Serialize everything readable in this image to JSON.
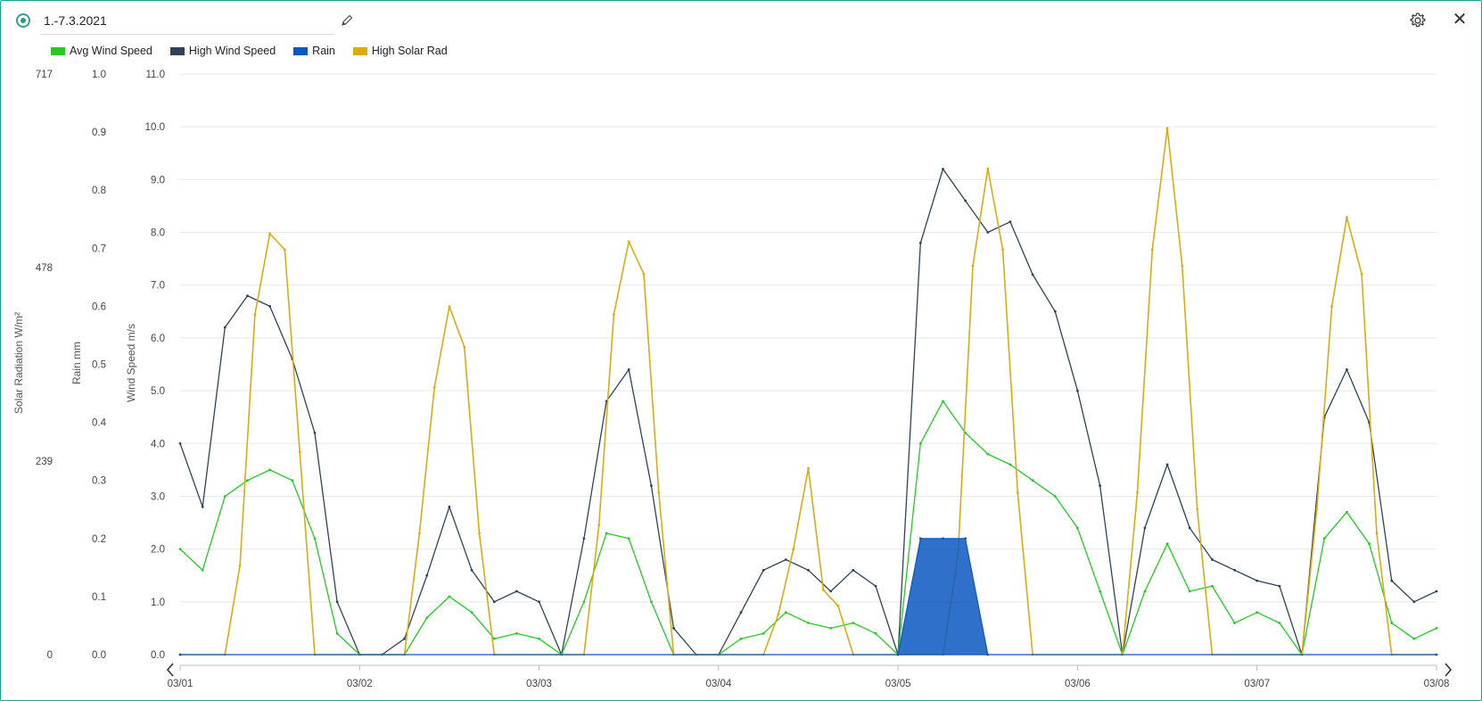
{
  "header": {
    "title": "1.-7.3.2021"
  },
  "icons": {
    "status": "radio-selected-icon",
    "edit": "pencil-icon",
    "settings": "gear-icon",
    "close": "close-icon"
  },
  "colors": {
    "avg_wind": "#22cc22",
    "high_wind": "#2e4358",
    "rain": "#0a57c2",
    "solar": "#d9ac14",
    "accent": "#17a589"
  },
  "chart_data": {
    "type": "line",
    "legend_placement": "top-left",
    "grid": true,
    "legend": [
      "Avg Wind Speed",
      "High Wind Speed",
      "Rain",
      "High Solar Rad"
    ],
    "x_ticks": [
      "03/01",
      "03/02",
      "03/03",
      "03/04",
      "03/05",
      "03/06",
      "03/07",
      "03/08"
    ],
    "x_range": [
      "2021-03-01",
      "2021-03-08"
    ],
    "axes": {
      "wind": {
        "label": "Wind Speed m/s",
        "range": [
          0,
          11
        ],
        "ticks": [
          "0.0",
          "1.0",
          "2.0",
          "3.0",
          "4.0",
          "5.0",
          "6.0",
          "7.0",
          "8.0",
          "9.0",
          "10.0",
          "11.0"
        ]
      },
      "rain": {
        "label": "Rain mm",
        "range": [
          0,
          1
        ],
        "ticks": [
          "0.0",
          "0.1",
          "0.2",
          "0.3",
          "0.4",
          "0.5",
          "0.6",
          "0.7",
          "0.8",
          "0.9",
          "1.0"
        ]
      },
      "solar": {
        "label": "Solar Radiation W/m²",
        "range": [
          0,
          717
        ],
        "ticks": [
          "0",
          "239",
          "478",
          "717"
        ]
      }
    },
    "series": [
      {
        "name": "Avg Wind Speed",
        "axis": "wind",
        "x": [
          "03/01 00:00",
          "03/01 03:00",
          "03/01 06:00",
          "03/01 09:00",
          "03/01 12:00",
          "03/01 15:00",
          "03/01 18:00",
          "03/01 21:00",
          "03/02 00:00",
          "03/02 03:00",
          "03/02 06:00",
          "03/02 09:00",
          "03/02 12:00",
          "03/02 15:00",
          "03/02 18:00",
          "03/02 21:00",
          "03/03 00:00",
          "03/03 03:00",
          "03/03 06:00",
          "03/03 09:00",
          "03/03 12:00",
          "03/03 15:00",
          "03/03 18:00",
          "03/03 21:00",
          "03/04 00:00",
          "03/04 03:00",
          "03/04 06:00",
          "03/04 09:00",
          "03/04 12:00",
          "03/04 15:00",
          "03/04 18:00",
          "03/04 21:00",
          "03/05 00:00",
          "03/05 03:00",
          "03/05 06:00",
          "03/05 09:00",
          "03/05 12:00",
          "03/05 15:00",
          "03/05 18:00",
          "03/05 21:00",
          "03/06 00:00",
          "03/06 03:00",
          "03/06 06:00",
          "03/06 09:00",
          "03/06 12:00",
          "03/06 15:00",
          "03/06 18:00",
          "03/06 21:00",
          "03/07 00:00",
          "03/07 03:00",
          "03/07 06:00",
          "03/07 09:00",
          "03/07 12:00",
          "03/07 15:00",
          "03/07 18:00",
          "03/07 21:00",
          "03/08 00:00"
        ],
        "values": [
          2.0,
          1.6,
          3.0,
          3.3,
          3.5,
          3.3,
          2.2,
          0.4,
          0.0,
          0.0,
          0.0,
          0.7,
          1.1,
          0.8,
          0.3,
          0.4,
          0.3,
          0.0,
          1.0,
          2.3,
          2.2,
          1.0,
          0.0,
          0.0,
          0.0,
          0.3,
          0.4,
          0.8,
          0.6,
          0.5,
          0.6,
          0.4,
          0.0,
          4.0,
          4.8,
          4.2,
          3.8,
          3.6,
          3.3,
          3.0,
          2.4,
          1.2,
          0.0,
          1.2,
          2.1,
          1.2,
          1.3,
          0.6,
          0.8,
          0.6,
          0.0,
          2.2,
          2.7,
          2.1,
          0.6,
          0.3,
          0.5
        ]
      },
      {
        "name": "High Wind Speed",
        "axis": "wind",
        "x": [
          "03/01 00:00",
          "03/01 03:00",
          "03/01 06:00",
          "03/01 09:00",
          "03/01 12:00",
          "03/01 15:00",
          "03/01 18:00",
          "03/01 21:00",
          "03/02 00:00",
          "03/02 03:00",
          "03/02 06:00",
          "03/02 09:00",
          "03/02 12:00",
          "03/02 15:00",
          "03/02 18:00",
          "03/02 21:00",
          "03/03 00:00",
          "03/03 03:00",
          "03/03 06:00",
          "03/03 09:00",
          "03/03 12:00",
          "03/03 15:00",
          "03/03 18:00",
          "03/03 21:00",
          "03/04 00:00",
          "03/04 03:00",
          "03/04 06:00",
          "03/04 09:00",
          "03/04 12:00",
          "03/04 15:00",
          "03/04 18:00",
          "03/04 21:00",
          "03/05 00:00",
          "03/05 03:00",
          "03/05 06:00",
          "03/05 09:00",
          "03/05 12:00",
          "03/05 15:00",
          "03/05 18:00",
          "03/05 21:00",
          "03/06 00:00",
          "03/06 03:00",
          "03/06 06:00",
          "03/06 09:00",
          "03/06 12:00",
          "03/06 15:00",
          "03/06 18:00",
          "03/06 21:00",
          "03/07 00:00",
          "03/07 03:00",
          "03/07 06:00",
          "03/07 09:00",
          "03/07 12:00",
          "03/07 15:00",
          "03/07 18:00",
          "03/07 21:00",
          "03/08 00:00"
        ],
        "values": [
          4.0,
          2.8,
          6.2,
          6.8,
          6.6,
          5.6,
          4.2,
          1.0,
          0.0,
          0.0,
          0.3,
          1.5,
          2.8,
          1.6,
          1.0,
          1.2,
          1.0,
          0.0,
          2.2,
          4.8,
          5.4,
          3.2,
          0.5,
          0.0,
          0.0,
          0.8,
          1.6,
          1.8,
          1.6,
          1.2,
          1.6,
          1.3,
          0.0,
          7.8,
          9.2,
          8.6,
          8.0,
          8.2,
          7.2,
          6.5,
          5.0,
          3.2,
          0.0,
          2.4,
          3.6,
          2.4,
          1.8,
          1.6,
          1.4,
          1.3,
          0.0,
          4.5,
          5.4,
          4.4,
          1.4,
          1.0,
          1.2
        ]
      },
      {
        "name": "Rain",
        "axis": "rain",
        "x": [
          "03/01 00:00",
          "03/05 00:00",
          "03/05 03:00",
          "03/05 06:00",
          "03/05 09:00",
          "03/05 12:00",
          "03/08 00:00"
        ],
        "values": [
          0.0,
          0.0,
          0.2,
          0.2,
          0.2,
          0.0,
          0.0
        ]
      },
      {
        "name": "High Solar Rad",
        "axis": "solar",
        "x": [
          "03/01 00:00",
          "03/01 06:00",
          "03/01 08:00",
          "03/01 10:00",
          "03/01 12:00",
          "03/01 14:00",
          "03/01 16:00",
          "03/01 18:00",
          "03/02 06:00",
          "03/02 08:00",
          "03/02 10:00",
          "03/02 12:00",
          "03/02 14:00",
          "03/02 16:00",
          "03/02 18:00",
          "03/03 06:00",
          "03/03 08:00",
          "03/03 10:00",
          "03/03 12:00",
          "03/03 14:00",
          "03/03 16:00",
          "03/03 18:00",
          "03/04 06:00",
          "03/04 08:00",
          "03/04 10:00",
          "03/04 12:00",
          "03/04 14:00",
          "03/04 16:00",
          "03/04 18:00",
          "03/05 06:00",
          "03/05 08:00",
          "03/05 10:00",
          "03/05 12:00",
          "03/05 14:00",
          "03/05 16:00",
          "03/05 18:00",
          "03/06 06:00",
          "03/06 08:00",
          "03/06 10:00",
          "03/06 12:00",
          "03/06 14:00",
          "03/06 16:00",
          "03/06 18:00",
          "03/07 06:00",
          "03/07 08:00",
          "03/07 10:00",
          "03/07 12:00",
          "03/07 14:00",
          "03/07 16:00",
          "03/07 18:00",
          "03/08 00:00"
        ],
        "values": [
          0,
          0,
          110,
          420,
          520,
          500,
          250,
          0,
          0,
          150,
          330,
          430,
          380,
          150,
          0,
          0,
          160,
          420,
          510,
          470,
          200,
          0,
          0,
          50,
          130,
          230,
          80,
          60,
          0,
          0,
          120,
          480,
          600,
          500,
          200,
          0,
          0,
          200,
          500,
          650,
          480,
          180,
          0,
          0,
          180,
          430,
          540,
          470,
          150,
          0,
          0
        ]
      }
    ]
  }
}
